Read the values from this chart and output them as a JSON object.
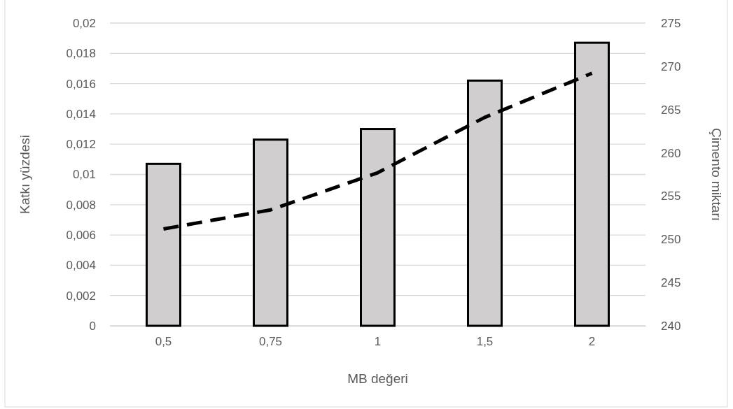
{
  "chart_data": {
    "type": "bar",
    "xlabel": "MB değeri",
    "ylabel": "Katkı yüzdesi",
    "y2label": "Çimento miktarı",
    "categories": [
      "0,5",
      "0,75",
      "1",
      "1,5",
      "2"
    ],
    "series": [
      {
        "color": "#d0cece",
        "values": [
          0.0107,
          0.0123,
          0.013,
          0.0162,
          0.0187
        ]
      },
      {
        "type": "line",
        "axis": "y2",
        "color": "#000000",
        "line_style": "dashed",
        "values": [
          251.2,
          253.4,
          257.7,
          264.1,
          269.2
        ]
      }
    ],
    "ylim": [
      0,
      0.02
    ],
    "yticks": [
      {
        "value": 0,
        "label": "0"
      },
      {
        "value": 0.002,
        "label": "0,002"
      },
      {
        "value": 0.004,
        "label": "0,004"
      },
      {
        "value": 0.006,
        "label": "0,006"
      },
      {
        "value": 0.008,
        "label": "0,008"
      },
      {
        "value": 0.01,
        "label": "0,01"
      },
      {
        "value": 0.012,
        "label": "0,012"
      },
      {
        "value": 0.014,
        "label": "0,014"
      },
      {
        "value": 0.016,
        "label": "0,016"
      },
      {
        "value": 0.018,
        "label": "0,018"
      },
      {
        "value": 0.02,
        "label": "0,02"
      }
    ],
    "y2lim": [
      240,
      275
    ],
    "y2ticks": [
      240,
      245,
      250,
      255,
      260,
      265,
      270,
      275
    ],
    "grid": "y"
  }
}
